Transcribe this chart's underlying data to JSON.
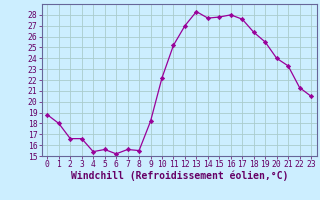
{
  "x": [
    0,
    1,
    2,
    3,
    4,
    5,
    6,
    7,
    8,
    9,
    10,
    11,
    12,
    13,
    14,
    15,
    16,
    17,
    18,
    19,
    20,
    21,
    22,
    23
  ],
  "y": [
    18.8,
    18.0,
    16.6,
    16.6,
    15.4,
    15.6,
    15.2,
    15.6,
    15.5,
    18.2,
    22.2,
    25.2,
    27.0,
    28.3,
    27.7,
    27.8,
    28.0,
    27.6,
    26.4,
    25.5,
    24.0,
    23.3,
    21.3,
    20.5
  ],
  "line_color": "#990099",
  "marker": "D",
  "marker_size": 2.2,
  "bg_color": "#cceeff",
  "grid_color": "#aacccc",
  "xlabel": "Windchill (Refroidissement éolien,°C)",
  "ylim": [
    15,
    29
  ],
  "xlim": [
    -0.5,
    23.5
  ],
  "yticks": [
    15,
    16,
    17,
    18,
    19,
    20,
    21,
    22,
    23,
    24,
    25,
    26,
    27,
    28
  ],
  "xticks": [
    0,
    1,
    2,
    3,
    4,
    5,
    6,
    7,
    8,
    9,
    10,
    11,
    12,
    13,
    14,
    15,
    16,
    17,
    18,
    19,
    20,
    21,
    22,
    23
  ],
  "tick_fontsize": 5.8,
  "xlabel_fontsize": 7.0,
  "axis_color": "#660066",
  "spine_color": "#666699"
}
